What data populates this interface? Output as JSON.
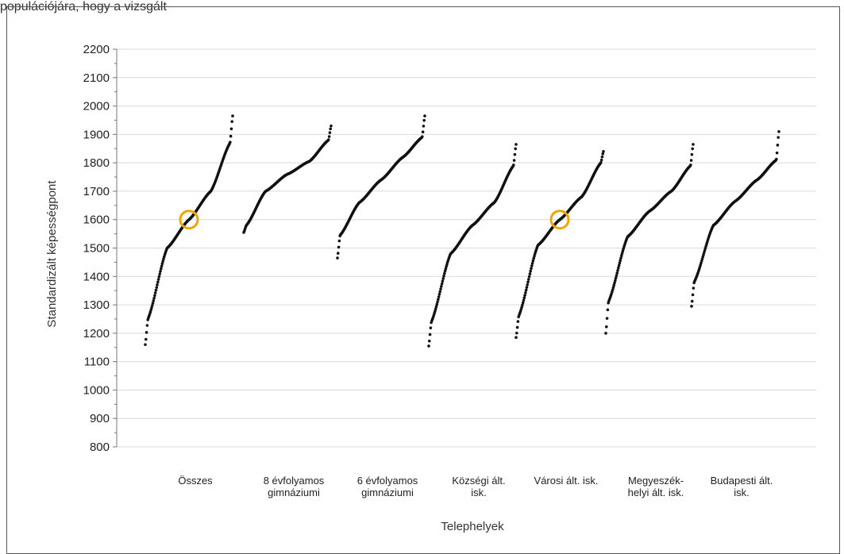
{
  "caption_fragment": "populációjára, hogy a vizsgált",
  "chart_data": {
    "type": "scatter",
    "title": "",
    "xlabel": "Telephelyek",
    "ylabel": "Standardizált képességpont",
    "ylim": [
      800,
      2200
    ],
    "yticks": [
      800,
      900,
      1000,
      1100,
      1200,
      1300,
      1400,
      1500,
      1600,
      1700,
      1800,
      1900,
      2000,
      2100,
      2200
    ],
    "grid": true,
    "categories": [
      [
        "Összes"
      ],
      [
        "8 évfolyamos",
        "gimnáziumi"
      ],
      [
        "6 évfolyamos",
        "gimnáziumi"
      ],
      [
        "Községi ált.",
        "isk."
      ],
      [
        "Városi ált. isk."
      ],
      [
        "Megyeszék-",
        "helyi ált. isk."
      ],
      [
        "Budapesti ált.",
        "isk."
      ]
    ],
    "series": [
      {
        "min": 1160,
        "q1": 1250,
        "q2": 1500,
        "mid": 1600,
        "q3": 1700,
        "q4": 1870,
        "max": 1965
      },
      {
        "min": 1555,
        "q1": 1580,
        "q2": 1700,
        "mid": 1760,
        "q3": 1805,
        "q4": 1880,
        "max": 1930
      },
      {
        "min": 1465,
        "q1": 1545,
        "q2": 1660,
        "mid": 1740,
        "q3": 1820,
        "q4": 1890,
        "max": 1965
      },
      {
        "min": 1155,
        "q1": 1240,
        "q2": 1480,
        "mid": 1580,
        "q3": 1660,
        "q4": 1790,
        "max": 1865
      },
      {
        "min": 1185,
        "q1": 1260,
        "q2": 1510,
        "mid": 1600,
        "q3": 1680,
        "q4": 1800,
        "max": 1840
      },
      {
        "min": 1200,
        "q1": 1310,
        "q2": 1540,
        "mid": 1630,
        "q3": 1700,
        "q4": 1790,
        "max": 1865
      },
      {
        "min": 1295,
        "q1": 1380,
        "q2": 1580,
        "mid": 1665,
        "q3": 1740,
        "q4": 1810,
        "max": 1910
      }
    ],
    "highlights": [
      {
        "category_index": 0,
        "y": 1600
      },
      {
        "category_index": 4,
        "y": 1600
      }
    ],
    "colors": {
      "points": "#111111",
      "highlight": "#f0a500",
      "grid": "#d9d9d9",
      "axis": "#777777"
    }
  }
}
